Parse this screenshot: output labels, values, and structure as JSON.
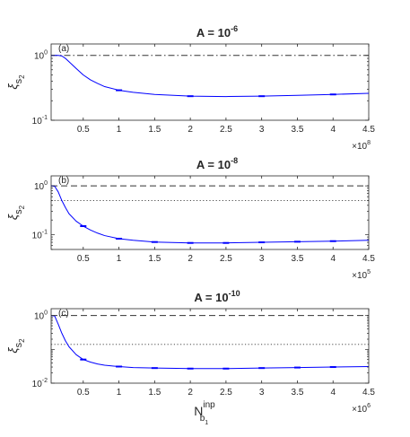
{
  "chart_data": [
    {
      "type": "line",
      "panel_label": "(a)",
      "title": {
        "base": "A = 10",
        "exp": "-6"
      },
      "ylabel": {
        "base": "ξ",
        "sub": "s",
        "subsub": "2"
      },
      "xlabel": null,
      "x_multiplier": {
        "base": "×10",
        "exp": "8"
      },
      "xlim": [
        0.05,
        4.5
      ],
      "ylim": [
        0.1,
        1.5
      ],
      "yscale": "log",
      "x_ticks": [
        "0.5",
        "1",
        "1.5",
        "2",
        "2.5",
        "3",
        "3.5",
        "4",
        "4.5"
      ],
      "y_ticks": [
        {
          "base": "10",
          "exp": "0",
          "value": 1
        },
        {
          "base": "10",
          "exp": "-1",
          "value": 0.1
        }
      ],
      "reference_lines": [
        {
          "style": "dash-dot",
          "y": 1.0
        }
      ],
      "series": [
        {
          "x": [
            0.05,
            0.15,
            0.2,
            0.25,
            0.3,
            0.4,
            0.5,
            0.6,
            0.7,
            0.8,
            1.0,
            1.2,
            1.5,
            2.0,
            2.5,
            3.0,
            3.5,
            4.0,
            4.5
          ],
          "y": [
            1.0,
            1.0,
            0.98,
            0.9,
            0.8,
            0.63,
            0.5,
            0.42,
            0.37,
            0.33,
            0.29,
            0.27,
            0.25,
            0.235,
            0.232,
            0.235,
            0.242,
            0.25,
            0.26
          ]
        }
      ],
      "error_bars_x": [
        1,
        2,
        3,
        4
      ]
    },
    {
      "type": "line",
      "panel_label": "(b)",
      "title": {
        "base": "A = 10",
        "exp": "-8"
      },
      "ylabel": {
        "base": "ξ",
        "sub": "s",
        "subsub": "2"
      },
      "xlabel": null,
      "x_multiplier": {
        "base": "×10",
        "exp": "5"
      },
      "xlim": [
        0.05,
        4.5
      ],
      "ylim": [
        0.05,
        1.6
      ],
      "yscale": "log",
      "x_ticks": [
        "0.5",
        "1",
        "1.5",
        "2",
        "2.5",
        "3",
        "3.5",
        "4",
        "4.5"
      ],
      "y_ticks": [
        {
          "base": "10",
          "exp": "0",
          "value": 1
        },
        {
          "base": "10",
          "exp": "-1",
          "value": 0.1
        }
      ],
      "reference_lines": [
        {
          "style": "dashed",
          "y": 1.0
        },
        {
          "style": "dotted",
          "y": 0.5
        }
      ],
      "series": [
        {
          "x": [
            0.05,
            0.1,
            0.15,
            0.2,
            0.25,
            0.3,
            0.4,
            0.5,
            0.6,
            0.7,
            0.8,
            1.0,
            1.2,
            1.5,
            2.0,
            2.5,
            3.0,
            3.5,
            4.0,
            4.5
          ],
          "y": [
            1.0,
            0.98,
            0.75,
            0.5,
            0.36,
            0.27,
            0.19,
            0.15,
            0.125,
            0.108,
            0.096,
            0.083,
            0.077,
            0.071,
            0.068,
            0.068,
            0.07,
            0.072,
            0.074,
            0.077
          ]
        }
      ],
      "error_bars_x": [
        0.5,
        1,
        1.5,
        2,
        2.5,
        3,
        3.5,
        4
      ]
    },
    {
      "type": "line",
      "panel_label": "(c)",
      "title": {
        "base": "A = 10",
        "exp": "-10"
      },
      "ylabel": {
        "base": "ξ",
        "sub": "s",
        "subsub": "2"
      },
      "xlabel": {
        "base": "N",
        "sup": "inp",
        "sub": "b",
        "subsub": "1"
      },
      "x_multiplier": {
        "base": "×10",
        "exp": "6"
      },
      "xlim": [
        0.05,
        4.5
      ],
      "ylim": [
        0.01,
        1.6
      ],
      "yscale": "log",
      "x_ticks": [
        "0.5",
        "1",
        "1.5",
        "2",
        "2.5",
        "3",
        "3.5",
        "4",
        "4.5"
      ],
      "y_ticks": [
        {
          "base": "10",
          "exp": "0",
          "value": 1
        },
        {
          "base": "10",
          "exp": "-2",
          "value": 0.01
        }
      ],
      "reference_lines": [
        {
          "style": "dashed",
          "y": 1.0
        },
        {
          "style": "dotted",
          "y": 0.14
        }
      ],
      "series": [
        {
          "x": [
            0.05,
            0.1,
            0.15,
            0.2,
            0.25,
            0.3,
            0.4,
            0.5,
            0.6,
            0.7,
            0.8,
            1.0,
            1.2,
            1.5,
            2.0,
            2.5,
            3.0,
            3.5,
            4.0,
            4.5
          ],
          "y": [
            1.0,
            0.97,
            0.55,
            0.3,
            0.18,
            0.12,
            0.07,
            0.05,
            0.042,
            0.037,
            0.034,
            0.031,
            0.029,
            0.028,
            0.027,
            0.027,
            0.028,
            0.029,
            0.03,
            0.031
          ]
        }
      ],
      "error_bars_x": [
        0.5,
        1,
        1.5,
        2,
        2.5,
        3,
        3.5,
        4
      ]
    }
  ],
  "colors": {
    "series": "#0000ff",
    "reference": "#333333",
    "axis": "#262626"
  }
}
